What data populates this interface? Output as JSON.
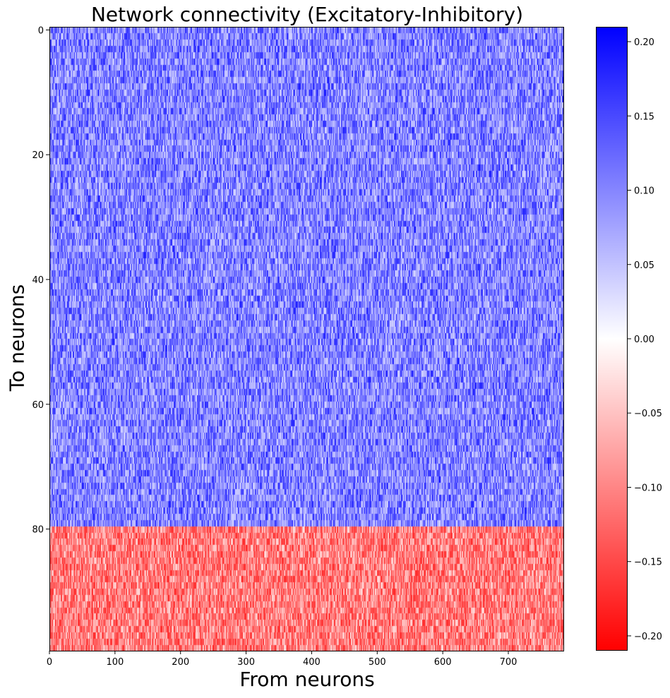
{
  "chart_data": {
    "type": "heatmap",
    "title": "Network connectivity (Excitatory-Inhibitory)",
    "xlabel": "From neurons",
    "ylabel": "To neurons",
    "x_range": [
      0,
      784
    ],
    "y_range": [
      0,
      100
    ],
    "y_inverted": true,
    "xticks": [
      0,
      100,
      200,
      300,
      400,
      500,
      600,
      700
    ],
    "yticks": [
      0,
      20,
      40,
      60,
      80
    ],
    "colormap": "bwr_r",
    "colorbar": {
      "vmin": -0.21,
      "vmax": 0.21,
      "ticks": [
        0.2,
        0.15,
        0.1,
        0.05,
        0.0,
        -0.05,
        -0.1,
        -0.15,
        -0.2
      ],
      "tick_labels": [
        "0.20",
        "0.15",
        "0.10",
        "0.05",
        "0.00",
        "−0.05",
        "−0.10",
        "−0.15",
        "−0.20"
      ],
      "color_max": "#0000ff",
      "color_zero": "#ffffff",
      "color_min": "#ff0000"
    },
    "regions": [
      {
        "rows": [
          0,
          80
        ],
        "sign": "positive",
        "typical_range": [
          0.0,
          0.21
        ]
      },
      {
        "rows": [
          80,
          100
        ],
        "sign": "negative",
        "typical_range": [
          -0.21,
          0.0
        ]
      }
    ]
  }
}
